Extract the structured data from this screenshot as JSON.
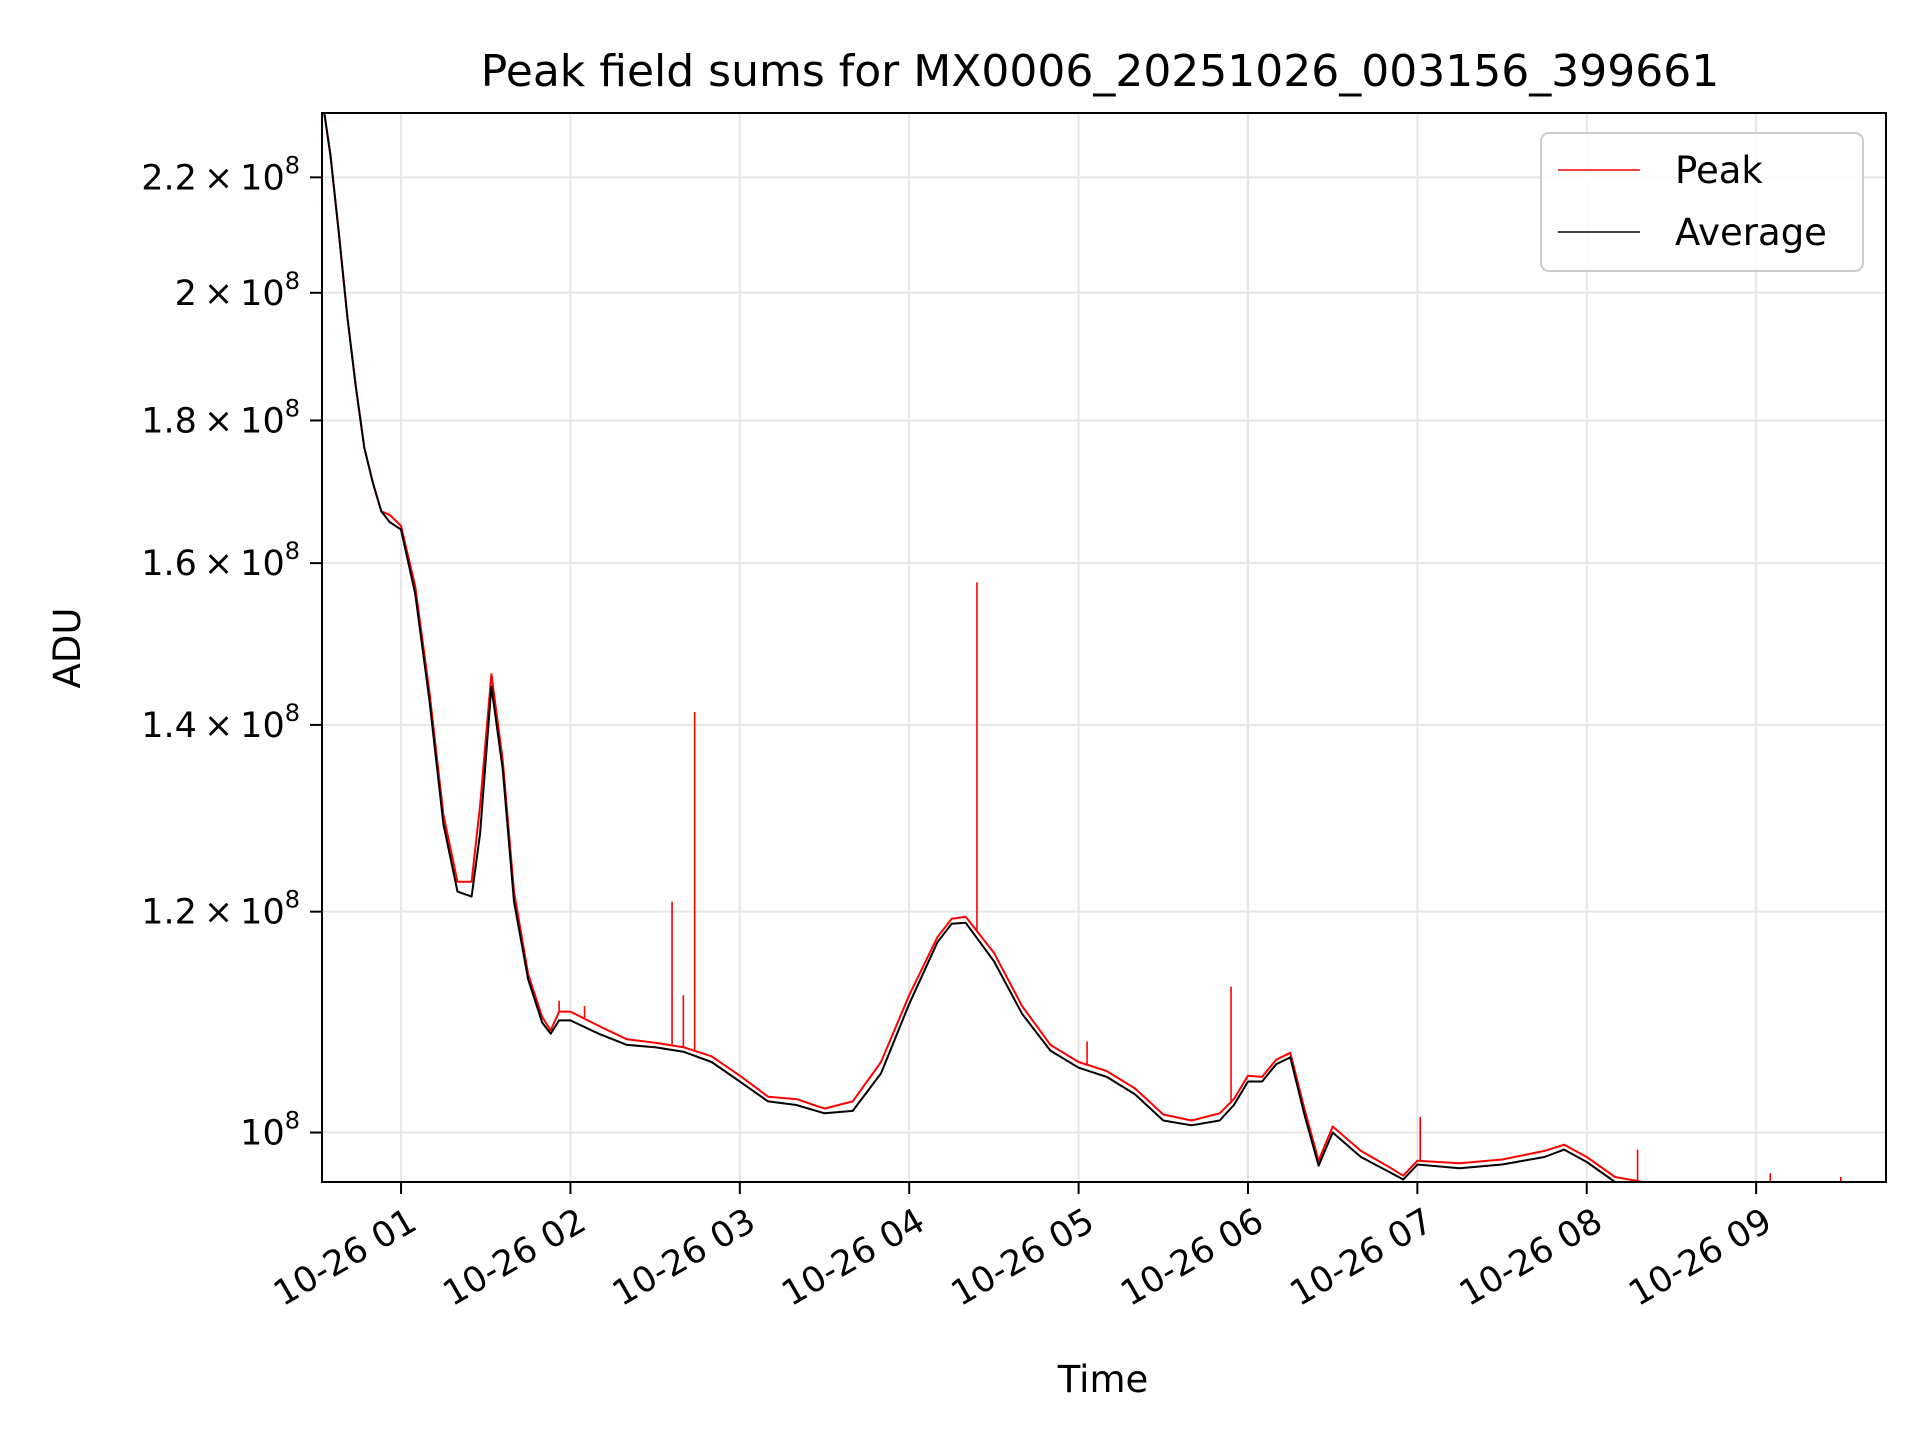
{
  "chart_data": {
    "type": "line",
    "title": "Peak field sums for MX0006_20251026_003156_399661",
    "xlabel": "Time",
    "ylabel": "ADU",
    "yscale": "log",
    "grid": true,
    "legend_position": "top-right",
    "xlim": [
      "2025-10-26T00:32:00",
      "2025-10-26T09:46:00"
    ],
    "ylim": [
      96000000,
      232000000
    ],
    "x_ticks": [
      {
        "value": "2025-10-26T01:00:00",
        "label": "10-26 01"
      },
      {
        "value": "2025-10-26T02:00:00",
        "label": "10-26 02"
      },
      {
        "value": "2025-10-26T03:00:00",
        "label": "10-26 03"
      },
      {
        "value": "2025-10-26T04:00:00",
        "label": "10-26 04"
      },
      {
        "value": "2025-10-26T05:00:00",
        "label": "10-26 05"
      },
      {
        "value": "2025-10-26T06:00:00",
        "label": "10-26 06"
      },
      {
        "value": "2025-10-26T07:00:00",
        "label": "10-26 07"
      },
      {
        "value": "2025-10-26T08:00:00",
        "label": "10-26 08"
      },
      {
        "value": "2025-10-26T09:00:00",
        "label": "10-26 09"
      }
    ],
    "y_ticks": [
      {
        "value": 100000000,
        "mantissa": "",
        "exp": "8"
      },
      {
        "value": 120000000,
        "mantissa": "1.2",
        "exp": "8"
      },
      {
        "value": 140000000,
        "mantissa": "1.4",
        "exp": "8"
      },
      {
        "value": 160000000,
        "mantissa": "1.6",
        "exp": "8"
      },
      {
        "value": 180000000,
        "mantissa": "1.8",
        "exp": "8"
      },
      {
        "value": 200000000,
        "mantissa": "2",
        "exp": "8"
      },
      {
        "value": 220000000,
        "mantissa": "2.2",
        "exp": "8"
      }
    ],
    "x_times": [
      "00:32",
      "00:35",
      "00:38",
      "00:41",
      "00:44",
      "00:47",
      "00:50",
      "00:53",
      "00:56",
      "01:00",
      "01:05",
      "01:10",
      "01:15",
      "01:20",
      "01:25",
      "01:28",
      "01:32",
      "01:36",
      "01:40",
      "01:45",
      "01:50",
      "01:53",
      "01:56",
      "02:00",
      "02:10",
      "02:20",
      "02:30",
      "02:40",
      "02:50",
      "03:00",
      "03:10",
      "03:20",
      "03:30",
      "03:40",
      "03:50",
      "04:00",
      "04:10",
      "04:15",
      "04:20",
      "04:30",
      "04:40",
      "04:50",
      "05:00",
      "05:10",
      "05:20",
      "05:30",
      "05:40",
      "05:50",
      "05:55",
      "06:00",
      "06:05",
      "06:10",
      "06:15",
      "06:20",
      "06:25",
      "06:30",
      "06:40",
      "06:50",
      "06:55",
      "07:00",
      "07:15",
      "07:30",
      "07:45",
      "07:52",
      "08:00",
      "08:10",
      "08:30",
      "08:50",
      "09:00",
      "09:20",
      "09:46"
    ],
    "series": [
      {
        "name": "Peak",
        "color": "#ff0000",
        "values": [
          235000000,
          224000000,
          210000000,
          196000000,
          185000000,
          176000000,
          171000000,
          167000000,
          166500000,
          165000000,
          157000000,
          144000000,
          130000000,
          123000000,
          123000000,
          131000000,
          146000000,
          136000000,
          122000000,
          114000000,
          110000000,
          108800000,
          110500000,
          110500000,
          109200000,
          108000000,
          107700000,
          107300000,
          106500000,
          104800000,
          103000000,
          102800000,
          102000000,
          102600000,
          106000000,
          112000000,
          117500000,
          119300000,
          119500000,
          116000000,
          111000000,
          107500000,
          106000000,
          105200000,
          103700000,
          101500000,
          101000000,
          101600000,
          102800000,
          104800000,
          104700000,
          106200000,
          106800000,
          102000000,
          97700000,
          100500000,
          98500000,
          97200000,
          96500000,
          97700000,
          97500000,
          97800000,
          98500000,
          99000000,
          98000000,
          96400000,
          95600000,
          95400000,
          95300000,
          95600000,
          95600000
        ]
      },
      {
        "name": "Average",
        "color": "#000000",
        "values": [
          235000000,
          224000000,
          210000000,
          196000000,
          185000000,
          176000000,
          171000000,
          167000000,
          165500000,
          164500000,
          156000000,
          143000000,
          129000000,
          122000000,
          121500000,
          128000000,
          144500000,
          135000000,
          121000000,
          113500000,
          109500000,
          108500000,
          109700000,
          109700000,
          108500000,
          107500000,
          107300000,
          106900000,
          106000000,
          104300000,
          102600000,
          102300000,
          101600000,
          101800000,
          105000000,
          111200000,
          117000000,
          118800000,
          118900000,
          115200000,
          110300000,
          107000000,
          105500000,
          104700000,
          103200000,
          101000000,
          100600000,
          101000000,
          102300000,
          104300000,
          104300000,
          105800000,
          106400000,
          101500000,
          97300000,
          100000000,
          98000000,
          96800000,
          96200000,
          97400000,
          97100000,
          97400000,
          98000000,
          98600000,
          97600000,
          96000000,
          95200000,
          95000000,
          95000000,
          95300000,
          95300000
        ]
      }
    ],
    "spikes": [
      {
        "series": "Peak",
        "x": "02:36",
        "y": 121000000
      },
      {
        "series": "Peak",
        "x": "02:44",
        "y": 141500000
      },
      {
        "series": "Peak",
        "x": "02:40",
        "y": 112000000
      },
      {
        "series": "Peak",
        "x": "01:56",
        "y": 111500000
      },
      {
        "series": "Peak",
        "x": "02:05",
        "y": 111000000
      },
      {
        "series": "Peak",
        "x": "04:24",
        "y": 157500000
      },
      {
        "series": "Peak",
        "x": "05:03",
        "y": 107800000
      },
      {
        "series": "Peak",
        "x": "05:54",
        "y": 112800000
      },
      {
        "series": "Peak",
        "x": "07:01",
        "y": 101300000
      },
      {
        "series": "Peak",
        "x": "08:18",
        "y": 98600000
      },
      {
        "series": "Peak",
        "x": "09:05",
        "y": 96700000
      },
      {
        "series": "Peak",
        "x": "09:30",
        "y": 96400000
      }
    ]
  }
}
